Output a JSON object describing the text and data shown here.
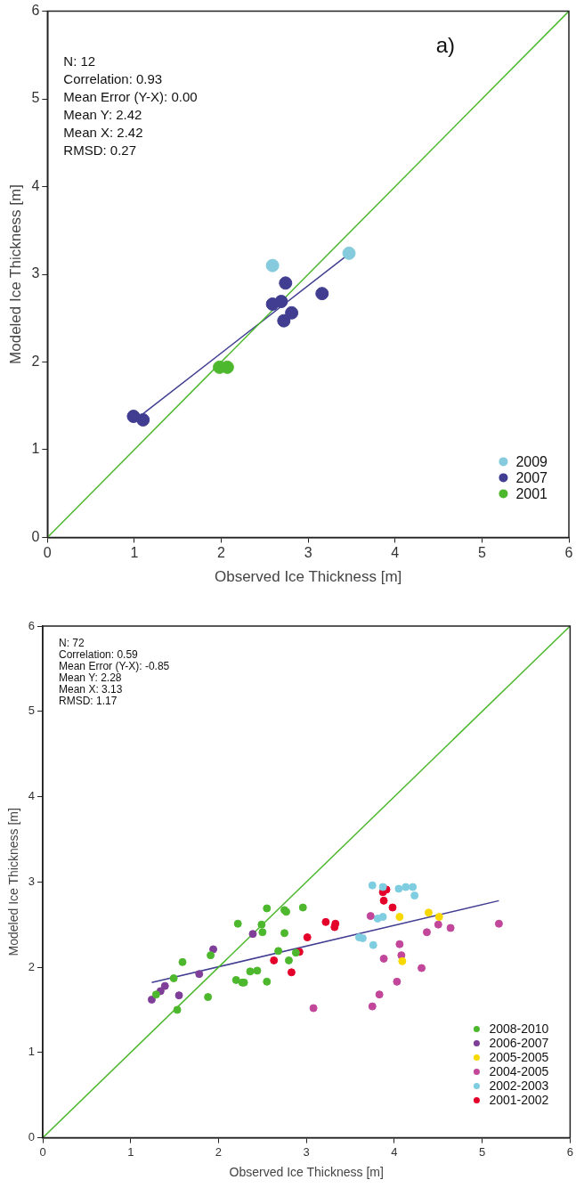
{
  "chart_data": [
    {
      "type": "scatter",
      "title": "a)",
      "xlabel": "Observed Ice Thickness [m]",
      "ylabel": "Modeled Ice Thickness [m]",
      "xlim": [
        0,
        6
      ],
      "ylim": [
        0,
        6
      ],
      "xticks": [
        0,
        1,
        2,
        3,
        4,
        5,
        6
      ],
      "yticks": [
        0,
        1,
        2,
        3,
        4,
        5,
        6
      ],
      "legend": "bottom right",
      "marker": "circle",
      "annotations": [
        "N: 12",
        "Correlation: 0.93",
        "Mean Error (Y-X): 0.00",
        "Mean Y: 2.42",
        "Mean X: 2.42",
        "RMSD: 0.27"
      ],
      "series": [
        {
          "type": "line",
          "marker": "none",
          "color": "#4db82e",
          "x": [
            0,
            6
          ],
          "values": [
            0,
            6
          ]
        },
        {
          "type": "line",
          "marker": "none",
          "color": "#413e92",
          "x": [
            1.1,
            3.44
          ],
          "values": [
            1.41,
            3.21
          ]
        },
        {
          "name": "2009",
          "color": "#85cbdd",
          "x": [
            2.59,
            3.47
          ],
          "values": [
            3.1,
            3.24
          ]
        },
        {
          "name": "2007",
          "color": "#413e92",
          "x": [
            2.74,
            3.16,
            2.59,
            2.69,
            2.81,
            2.72,
            0.99,
            1.1
          ],
          "values": [
            2.9,
            2.78,
            2.66,
            2.69,
            2.56,
            2.47,
            1.38,
            1.34
          ]
        },
        {
          "name": "2001",
          "color": "#4db82e",
          "x": [
            1.98,
            2.07
          ],
          "values": [
            1.94,
            1.94
          ]
        }
      ]
    },
    {
      "type": "scatter",
      "xlabel": "Observed Ice Thickness [m]",
      "ylabel": "Modeled Ice Thickness [m]",
      "xlim": [
        0,
        6
      ],
      "ylim": [
        0,
        6
      ],
      "xticks": [
        0,
        1,
        2,
        3,
        4,
        5,
        6
      ],
      "yticks": [
        0,
        1,
        2,
        3,
        4,
        5,
        6
      ],
      "legend": "bottom right",
      "marker": "circle",
      "annotations": [
        "N: 72",
        "Correlation: 0.59",
        "Mean Error (Y-X): -0.85",
        "Mean Y: 2.28",
        "Mean X: 3.13",
        "RMSD: 1.17"
      ],
      "series": [
        {
          "type": "line",
          "marker": "none",
          "color": "#4db82e",
          "x": [
            0,
            6
          ],
          "values": [
            0,
            6
          ]
        },
        {
          "type": "line",
          "marker": "none",
          "color": "#413e92",
          "x": [
            1.24,
            5.19
          ],
          "values": [
            1.82,
            2.78
          ]
        },
        {
          "name": "2008-2010",
          "color": "#4db82e",
          "x": [
            2.55,
            2.75,
            2.77,
            2.96,
            2.22,
            2.49,
            2.5,
            2.75,
            1.91,
            1.59,
            2.68,
            2.8,
            2.88,
            2.36,
            2.44,
            2.2,
            2.27,
            2.29,
            2.55,
            1.49,
            1.29,
            1.88,
            1.53
          ],
          "values": [
            2.69,
            2.67,
            2.65,
            2.7,
            2.51,
            2.5,
            2.41,
            2.4,
            2.14,
            2.06,
            2.19,
            2.08,
            2.17,
            1.95,
            1.96,
            1.85,
            1.82,
            1.82,
            1.83,
            1.87,
            1.68,
            1.65,
            1.5
          ]
        },
        {
          "name": "2006-2007",
          "color": "#7f3f98",
          "x": [
            2.39,
            1.94,
            1.78,
            1.39,
            1.34,
            1.24,
            1.55
          ],
          "values": [
            2.39,
            2.21,
            1.92,
            1.78,
            1.72,
            1.62,
            1.67
          ]
        },
        {
          "name": "2005-2005",
          "color": "#f7d900",
          "x": [
            4.06,
            4.39,
            4.51,
            4.09
          ],
          "values": [
            2.59,
            2.64,
            2.59,
            2.07
          ]
        },
        {
          "name": "2004-2005",
          "color": "#c2479a",
          "x": [
            3.73,
            4.5,
            4.64,
            4.37,
            5.19,
            4.06,
            4.08,
            3.88,
            4.31,
            4.03,
            3.83,
            3.75,
            3.08
          ],
          "values": [
            2.6,
            2.5,
            2.46,
            2.41,
            2.51,
            2.27,
            2.14,
            2.1,
            1.99,
            1.83,
            1.68,
            1.54,
            1.52
          ]
        },
        {
          "name": "2002-2003",
          "color": "#7fcde0",
          "x": [
            3.75,
            3.87,
            4.05,
            4.13,
            4.21,
            4.23,
            3.81,
            3.87,
            3.6,
            3.64,
            3.76
          ],
          "values": [
            2.96,
            2.94,
            2.92,
            2.94,
            2.94,
            2.84,
            2.57,
            2.59,
            2.35,
            2.34,
            2.26
          ]
        },
        {
          "name": "2001-2002",
          "color": "#e4002b",
          "x": [
            3.22,
            3.01,
            2.92,
            2.63,
            2.83,
            3.87,
            3.91,
            3.88,
            3.98,
            3.33,
            3.32
          ],
          "values": [
            2.53,
            2.35,
            2.18,
            2.08,
            1.94,
            2.88,
            2.91,
            2.78,
            2.7,
            2.51,
            2.47
          ]
        }
      ]
    }
  ]
}
